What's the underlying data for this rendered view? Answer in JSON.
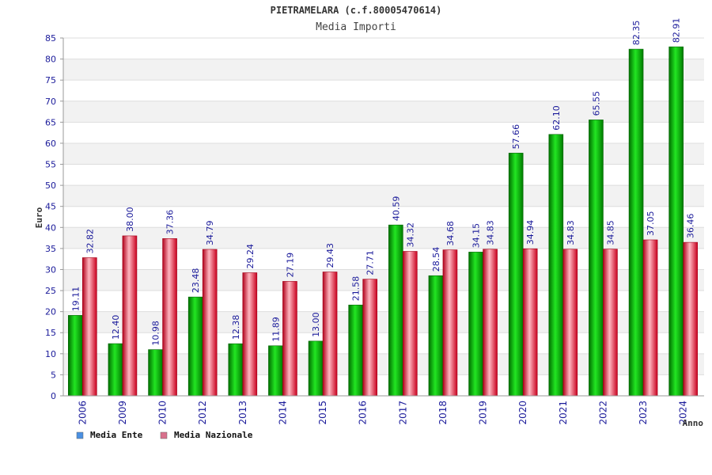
{
  "chart_data": {
    "type": "bar",
    "title": "PIETRAMELARA (c.f.80005470614)",
    "subtitle": "Media Importi",
    "xlabel": "Anno",
    "ylabel": "Euro",
    "ylim": [
      0,
      85
    ],
    "ytick_step": 5,
    "grid": true,
    "legend_position": "bottom-left",
    "categories": [
      "2006",
      "2009",
      "2010",
      "2012",
      "2013",
      "2014",
      "2015",
      "2016",
      "2017",
      "2018",
      "2019",
      "2020",
      "2021",
      "2022",
      "2023",
      "2024"
    ],
    "series": [
      {
        "name": "Media Ente",
        "color": "#00b400",
        "legend_color": "#4a90e2",
        "values": [
          19.11,
          12.4,
          10.98,
          23.48,
          12.38,
          11.89,
          13.0,
          21.58,
          40.59,
          28.54,
          34.15,
          57.66,
          62.1,
          65.55,
          82.35,
          82.91
        ],
        "labels": [
          "19.11",
          "12.40",
          "10.98",
          "23.48",
          "12.38",
          "11.89",
          "13.00",
          "21.58",
          "40.59",
          "28.54",
          "34.15",
          "57.66",
          "62.10",
          "65.55",
          "82.35",
          "82.91"
        ]
      },
      {
        "name": "Media Nazionale",
        "color": "#e8142c",
        "legend_color": "#d8708c",
        "values": [
          32.82,
          38.0,
          37.36,
          34.79,
          29.24,
          27.19,
          29.43,
          27.71,
          34.32,
          34.68,
          34.83,
          34.94,
          34.83,
          34.85,
          37.05,
          36.46
        ],
        "labels": [
          "32.82",
          "38.00",
          "37.36",
          "34.79",
          "29.24",
          "27.19",
          "29.43",
          "27.71",
          "34.32",
          "34.68",
          "34.83",
          "34.94",
          "34.83",
          "34.85",
          "37.05",
          "36.46"
        ]
      }
    ]
  }
}
